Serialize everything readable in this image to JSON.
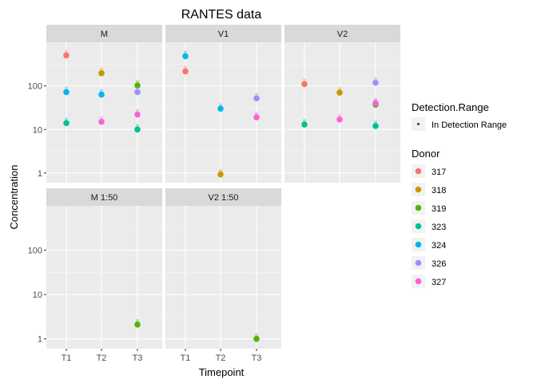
{
  "chart_data": {
    "type": "scatter",
    "title": "RANTES data",
    "xlabel": "Timepoint",
    "ylabel": "Concentration",
    "yscale": "log10",
    "ylim": [
      0.6,
      1000
    ],
    "yticks": [
      1,
      10,
      100
    ],
    "ytick_labels": [
      "1",
      "10",
      "100"
    ],
    "categories": [
      "T1",
      "T2",
      "T3"
    ],
    "grid": true,
    "legend_position": "right",
    "panel_bg": "#ebebeb",
    "strip_bg": "#d9d9d9",
    "panels": [
      {
        "label": "M",
        "row": 0,
        "col": 0,
        "points": [
          {
            "x": "T1",
            "donor": "317",
            "y": 500
          },
          {
            "x": "T1",
            "donor": "324",
            "y": 72
          },
          {
            "x": "T1",
            "donor": "323",
            "y": 14
          },
          {
            "x": "T2",
            "donor": "318",
            "y": 195
          },
          {
            "x": "T2",
            "donor": "324",
            "y": 63
          },
          {
            "x": "T2",
            "donor": "327",
            "y": 15
          },
          {
            "x": "T3",
            "donor": "319",
            "y": 102
          },
          {
            "x": "T3",
            "donor": "326",
            "y": 72
          },
          {
            "x": "T3",
            "donor": "327",
            "y": 22
          },
          {
            "x": "T3",
            "donor": "323",
            "y": 10
          }
        ]
      },
      {
        "label": "V1",
        "row": 0,
        "col": 1,
        "points": [
          {
            "x": "T1",
            "donor": "324",
            "y": 480
          },
          {
            "x": "T1",
            "donor": "317",
            "y": 215
          },
          {
            "x": "T2",
            "donor": "324",
            "y": 30
          },
          {
            "x": "T2",
            "donor": "318",
            "y": 0.93
          },
          {
            "x": "T3",
            "donor": "326",
            "y": 52
          },
          {
            "x": "T3",
            "donor": "327",
            "y": 19
          }
        ]
      },
      {
        "label": "V2",
        "row": 0,
        "col": 2,
        "points": [
          {
            "x": "T1",
            "donor": "317",
            "y": 110
          },
          {
            "x": "T1",
            "donor": "323",
            "y": 13
          },
          {
            "x": "T2",
            "donor": "318",
            "y": 70
          },
          {
            "x": "T2",
            "donor": "327",
            "y": 17
          },
          {
            "x": "T3",
            "donor": "326",
            "y": 118
          },
          {
            "x": "T3",
            "donor": "319",
            "y": 37
          },
          {
            "x": "T3",
            "donor": "327",
            "y": 40
          },
          {
            "x": "T3",
            "donor": "323",
            "y": 12
          }
        ]
      },
      {
        "label": "M 1:50",
        "row": 1,
        "col": 0,
        "points": [
          {
            "x": "T3",
            "donor": "319",
            "y": 2.1
          }
        ]
      },
      {
        "label": "V2 1:50",
        "row": 1,
        "col": 1,
        "points": [
          {
            "x": "T3",
            "donor": "319",
            "y": 1.0
          }
        ]
      }
    ],
    "legends": [
      {
        "title": "Detection.Range",
        "entries": [
          {
            "label": "In Detection Range",
            "color": "#4d4d4d"
          }
        ]
      },
      {
        "title": "Donor",
        "entries": [
          {
            "label": "317",
            "color": "#F8766D"
          },
          {
            "label": "318",
            "color": "#C49A00"
          },
          {
            "label": "319",
            "color": "#53B400"
          },
          {
            "label": "323",
            "color": "#00C094"
          },
          {
            "label": "324",
            "color": "#00B6EB"
          },
          {
            "label": "326",
            "color": "#A58AFF"
          },
          {
            "label": "327",
            "color": "#FB61D7"
          }
        ]
      }
    ]
  }
}
